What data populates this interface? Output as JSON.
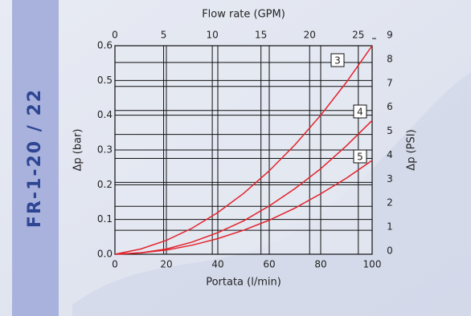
{
  "chart_data": {
    "type": "line",
    "side_title": "FR-1-20 / 22",
    "x_label": "Portata (l/min)",
    "x2_label": "Flow rate (GPM)",
    "y_label": "Δp (bar)",
    "y2_label": "Δp (PSI)",
    "x": [
      0,
      10,
      20,
      30,
      40,
      50,
      60,
      70,
      80,
      90,
      100
    ],
    "xlim": [
      0,
      100
    ],
    "xticks": [
      0,
      20,
      40,
      60,
      80,
      100
    ],
    "x2lim": [
      0,
      26.42
    ],
    "x2ticks": [
      0,
      5,
      10,
      15,
      20,
      25
    ],
    "ylim": [
      0,
      0.6
    ],
    "yticks": [
      {
        "value": 0,
        "label": "0.0"
      },
      0.1,
      0.2,
      0.3,
      0.4,
      0.5,
      0.6
    ],
    "y2lim": [
      0,
      8.7
    ],
    "y2ticks": [
      0,
      1,
      2,
      3,
      4,
      5,
      6,
      7,
      8,
      9
    ],
    "grid": true,
    "series": [
      {
        "name": "3",
        "color": "#e3222b",
        "values": [
          0,
          0.015,
          0.04,
          0.075,
          0.12,
          0.175,
          0.24,
          0.315,
          0.4,
          0.495,
          0.6
        ]
      },
      {
        "name": "4",
        "color": "#e3222b",
        "values": [
          0,
          0.004,
          0.015,
          0.035,
          0.062,
          0.096,
          0.139,
          0.189,
          0.246,
          0.312,
          0.385
        ]
      },
      {
        "name": "5",
        "color": "#e3222b",
        "values": [
          0,
          0.004,
          0.012,
          0.026,
          0.045,
          0.069,
          0.098,
          0.133,
          0.174,
          0.219,
          0.27
        ]
      }
    ]
  }
}
